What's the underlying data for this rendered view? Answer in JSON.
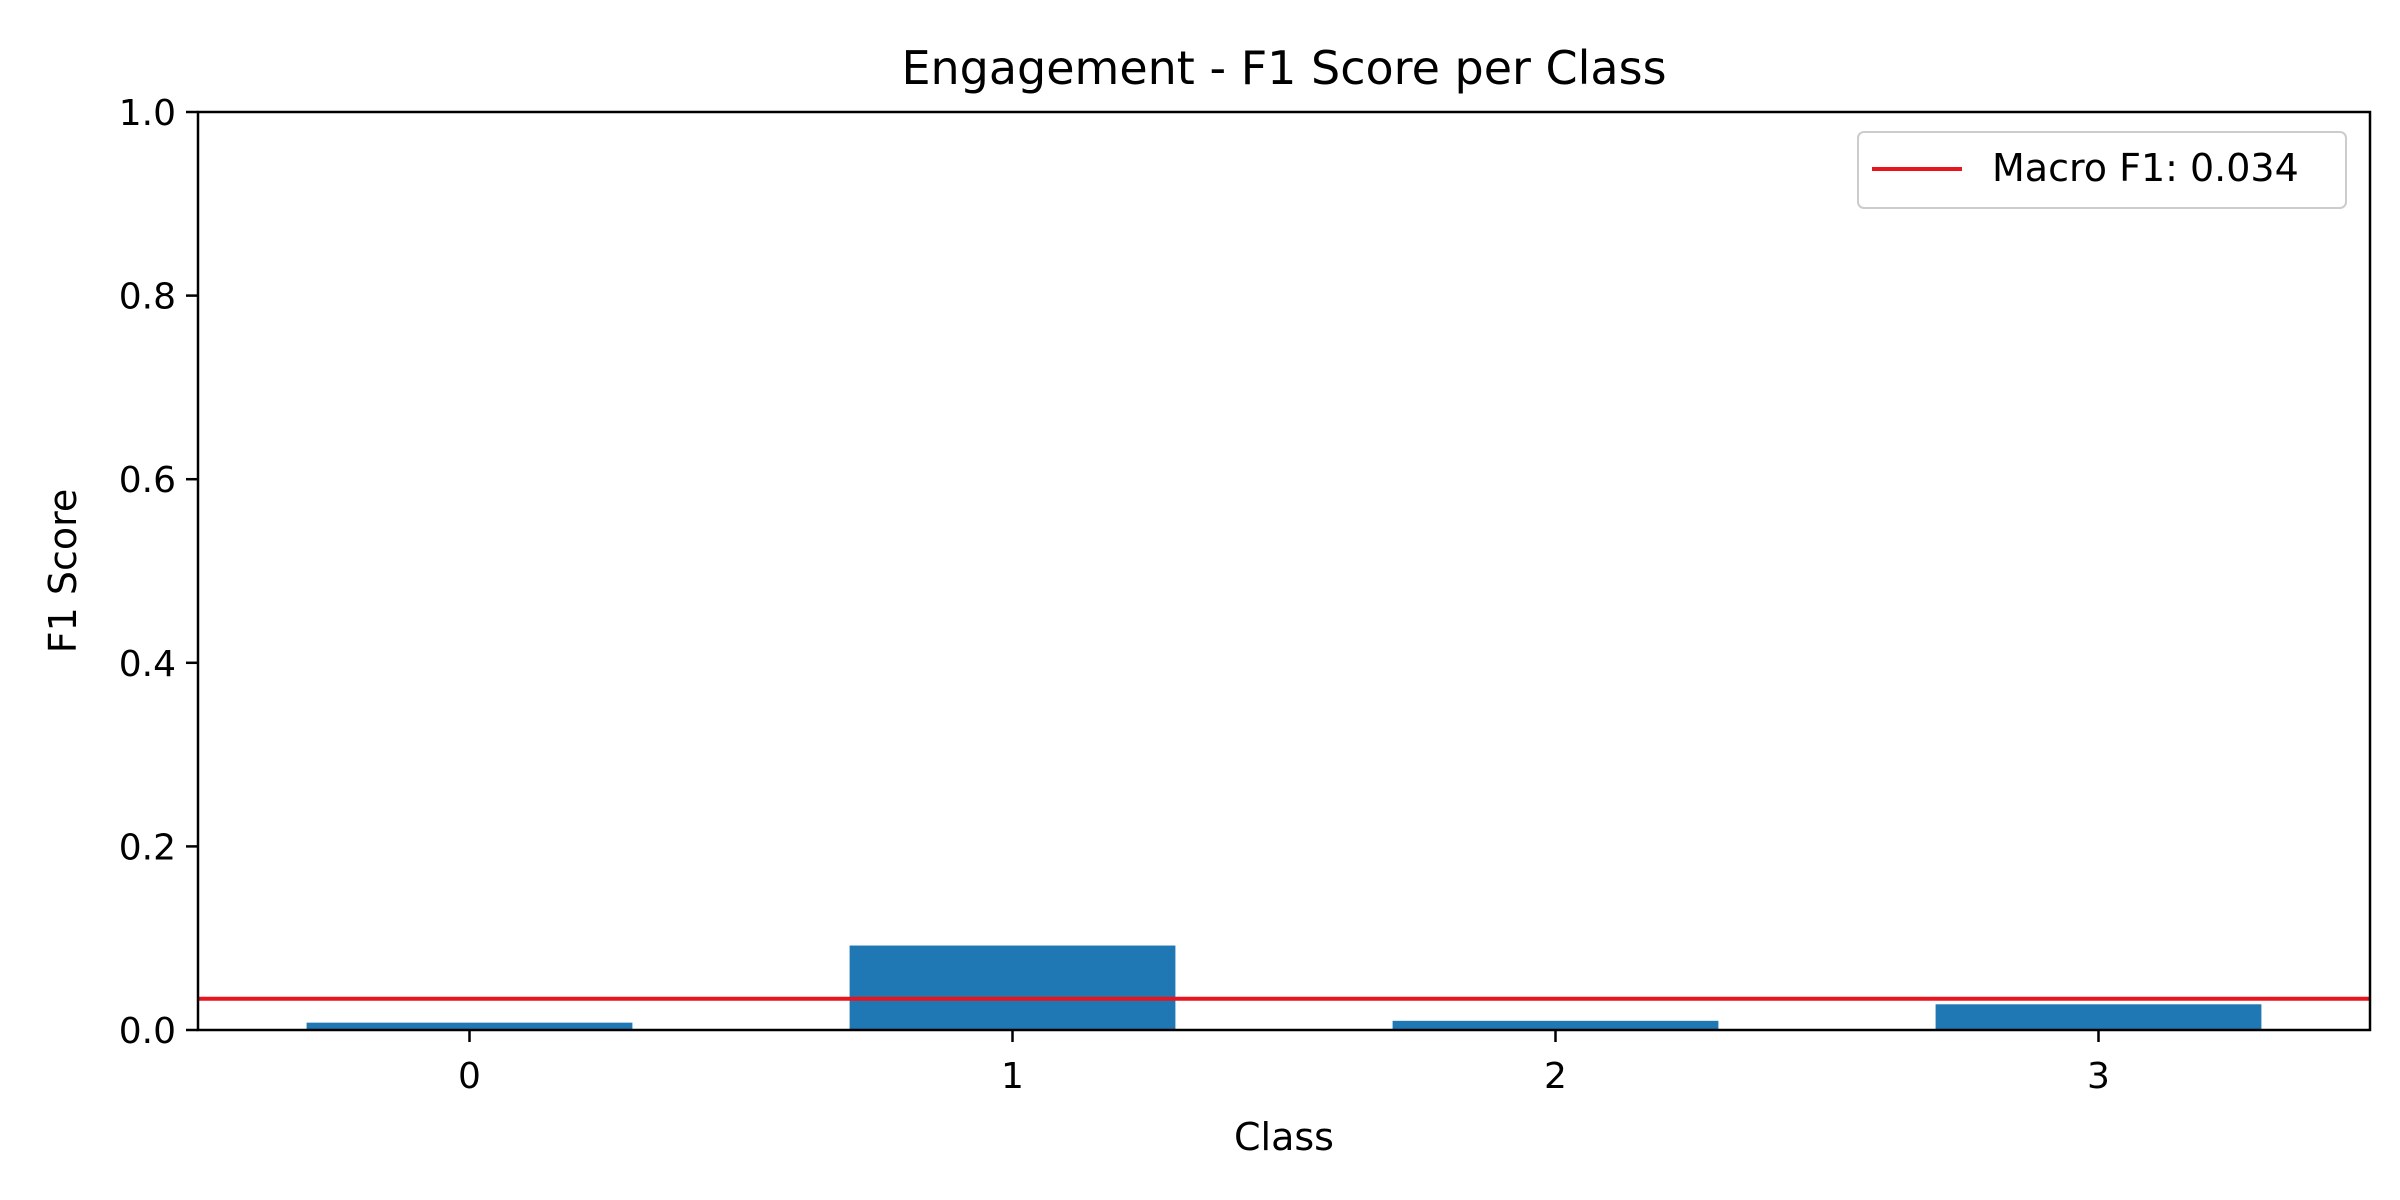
{
  "chart_data": {
    "type": "bar",
    "title": "Engagement - F1 Score per Class",
    "xlabel": "Class",
    "ylabel": "F1 Score",
    "categories": [
      "0",
      "1",
      "2",
      "3"
    ],
    "values": [
      0.008,
      0.092,
      0.01,
      0.028
    ],
    "ylim": [
      0,
      1.0
    ],
    "yticks": [
      "0.0",
      "0.2",
      "0.4",
      "0.6",
      "0.8",
      "1.0"
    ],
    "ytick_values": [
      0,
      0.2,
      0.4,
      0.6,
      0.8,
      1.0
    ],
    "bar_color": "#1f77b4",
    "reference_line": {
      "label": "Macro F1: 0.034",
      "value": 0.034,
      "color": "#e8141e"
    },
    "legend_position": "upper right",
    "grid": false
  }
}
